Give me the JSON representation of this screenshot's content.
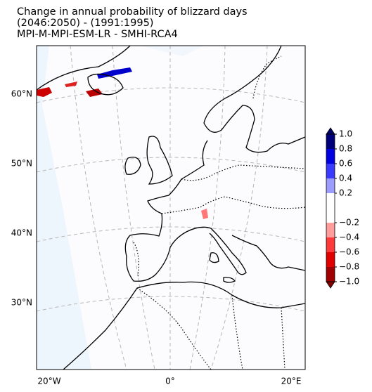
{
  "chart_data": {
    "type": "map",
    "title": [
      "Change in annual probability of blizzard days",
      "(2046:2050) - (1991:1995)",
      "MPI-M-MPI-ESM-LR - SMHI-RCA4"
    ],
    "lat_ticks": [
      {
        "value": 60,
        "label": "60°N"
      },
      {
        "value": 50,
        "label": "50°N"
      },
      {
        "value": 40,
        "label": "40°N"
      },
      {
        "value": 30,
        "label": "30°N"
      }
    ],
    "lon_ticks": [
      {
        "value": -20,
        "label": "20°W"
      },
      {
        "value": 0,
        "label": "0°"
      },
      {
        "value": 20,
        "label": "20°E"
      }
    ],
    "colorbar": {
      "ticks": [
        {
          "value": -1.0,
          "label": "−1.0"
        },
        {
          "value": -0.8,
          "label": "−0.8"
        },
        {
          "value": -0.6,
          "label": "−0.6"
        },
        {
          "value": -0.4,
          "label": "−0.4"
        },
        {
          "value": -0.2,
          "label": "−0.2"
        },
        {
          "value": 0.2,
          "label": "0.2"
        },
        {
          "value": 0.4,
          "label": "0.4"
        },
        {
          "value": 0.6,
          "label": "0.6"
        },
        {
          "value": 0.8,
          "label": "0.8"
        },
        {
          "value": 1.0,
          "label": "1.0"
        }
      ],
      "colors": [
        "#a00000",
        "#e00000",
        "#ff3a3a",
        "#ff9c9c",
        "#ffffff",
        "#9c9cff",
        "#3a3aff",
        "#0000e0",
        "#00007a"
      ],
      "under_color": "#800000",
      "over_color": "#000066",
      "extend": "both"
    }
  }
}
